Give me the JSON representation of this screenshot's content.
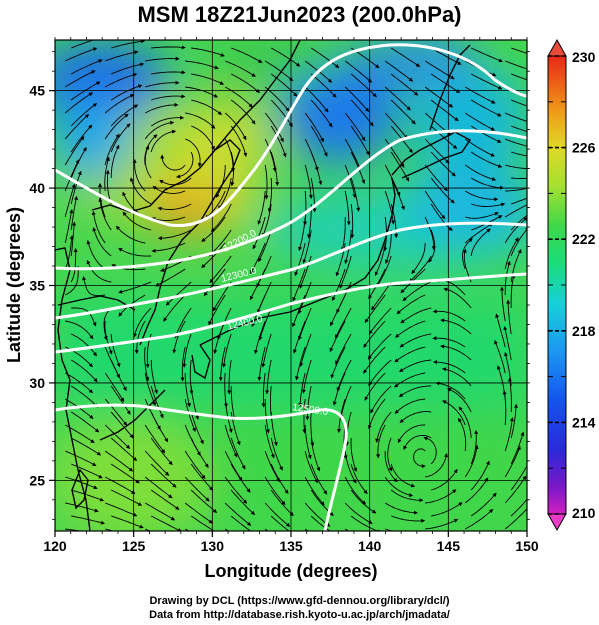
{
  "figure": {
    "title": "MSM 18Z21Jun2023 (200.0hPa)",
    "xlabel": "Longitude (degrees)",
    "ylabel": "Latitude  (degrees)",
    "credit_line1": "Drawing by DCL (https://www.gfd-dennou.org/library/dcl/)",
    "credit_line2": "Data from http://database.rish.kyoto-u.ac.jp/arch/jmadata/"
  },
  "map": {
    "lon_range": [
      120,
      150
    ],
    "lat_range": [
      22.4,
      47.6
    ],
    "x_ticks": [
      "120",
      "125",
      "130",
      "135",
      "140",
      "145",
      "150"
    ],
    "y_ticks": [
      "25",
      "30",
      "35",
      "40",
      "45"
    ]
  },
  "colorbar": {
    "range": [
      210,
      230
    ],
    "tick_labels": [
      "230",
      "226",
      "222",
      "218",
      "214",
      "210"
    ],
    "colors": [
      "#d020c0",
      "#5a1cc8",
      "#1440e0",
      "#1c8ef0",
      "#18d0d8",
      "#1cdc70",
      "#3cd848",
      "#a8e030",
      "#e0d828",
      "#f0a018",
      "#f06018",
      "#e82818"
    ]
  },
  "contours": [
    {
      "label": "12200.0"
    },
    {
      "label": "12300.0"
    },
    {
      "label": "12400.0"
    },
    {
      "label": "12500.0"
    }
  ]
}
